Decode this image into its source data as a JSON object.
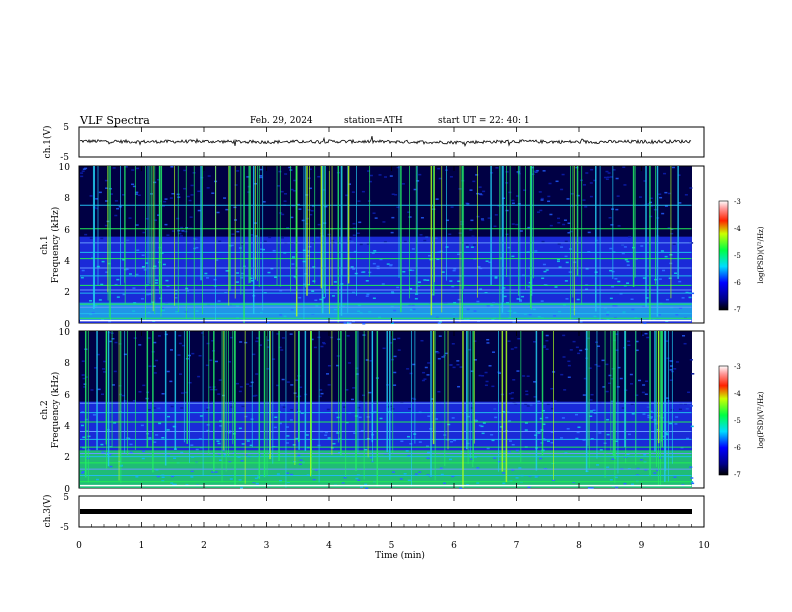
{
  "header": {
    "title": "VLF  Spectra",
    "date": "Feb. 29, 2024",
    "station": "station=ATH",
    "start": "start  UT  =   22: 40: 1"
  },
  "panels": {
    "ch1": {
      "ylabel": "ch.1(V)",
      "yticks": [
        "5",
        "-5"
      ]
    },
    "spec1": {
      "ylabel_ch": "ch.1",
      "ylabel": "Frequency  (kHz)",
      "yticks": [
        "10",
        "8",
        "6",
        "4",
        "2",
        "0"
      ]
    },
    "spec2": {
      "ylabel_ch": "ch.2",
      "ylabel": "Frequency  (kHz)",
      "yticks": [
        "10",
        "8",
        "6",
        "4",
        "2",
        "0"
      ]
    },
    "ch3": {
      "ylabel": "ch.3(V)",
      "yticks": [
        "5",
        "-5"
      ]
    }
  },
  "xaxis": {
    "label": "Time  (min)",
    "ticks": [
      "0",
      "1",
      "2",
      "3",
      "4",
      "5",
      "6",
      "7",
      "8",
      "9",
      "10"
    ]
  },
  "colorbar": {
    "label": "log(PSD)(V²/Hz)",
    "ticks": [
      "-3",
      "-4",
      "-5",
      "-6",
      "-7"
    ]
  },
  "colors": {
    "background": "#ffffff",
    "spectrogram_dark": "#000033",
    "spectrogram_mid": "#0000cc",
    "line_green": "#22ee44",
    "line_cyan": "#22bbee",
    "band_red": "#ee2222",
    "trace": "#000000"
  },
  "chart_data": [
    {
      "type": "line",
      "title": "",
      "xlabel": "",
      "ylabel": "ch.1(V)",
      "xlim": [
        0,
        10
      ],
      "ylim": [
        -5,
        5
      ],
      "series": [
        {
          "x": [
            0,
            1,
            2,
            3,
            4,
            5,
            6,
            7,
            8,
            9,
            9.8
          ],
          "y": [
            0.3,
            0.1,
            0.2,
            0.0,
            0.2,
            0.1,
            -0.1,
            0.2,
            0.0,
            0.1,
            0.2
          ]
        }
      ]
    },
    {
      "type": "heatmap",
      "xlabel": "",
      "ylabel": "Frequency  (kHz)",
      "xlim": [
        0,
        10
      ],
      "ylim": [
        0,
        10
      ],
      "colorbar_range": [
        -7,
        -3
      ],
      "colorbar_label": "log(PSD)(V²/Hz)",
      "data_end_min": 9.8,
      "lines_khz": [
        0.3,
        0.6,
        1.0,
        1.2,
        1.9,
        2.1,
        2.4,
        3.0,
        3.5,
        4.1,
        4.5,
        5.1,
        6.0,
        7.5
      ],
      "bright_low_band_khz": [
        0.2,
        1.3
      ]
    },
    {
      "type": "heatmap",
      "xlabel": "",
      "ylabel": "Frequency  (kHz)",
      "xlim": [
        0,
        10
      ],
      "ylim": [
        0,
        10
      ],
      "colorbar_range": [
        -7,
        -3
      ],
      "colorbar_label": "log(PSD)(V²/Hz)",
      "data_end_min": 9.8,
      "lines_khz": [
        0.4,
        0.8,
        1.2,
        1.6,
        2.0,
        2.2,
        2.6,
        3.1,
        3.6,
        4.2,
        4.8,
        5.4
      ],
      "bright_low_band_khz": [
        0.0,
        2.4
      ]
    },
    {
      "type": "line",
      "xlabel": "Time  (min)",
      "ylabel": "ch.3(V)",
      "xlim": [
        0,
        10
      ],
      "ylim": [
        -5,
        5
      ],
      "series": [
        {
          "x": [
            0,
            9.8
          ],
          "y": [
            -0.1,
            -0.1
          ]
        }
      ]
    }
  ]
}
